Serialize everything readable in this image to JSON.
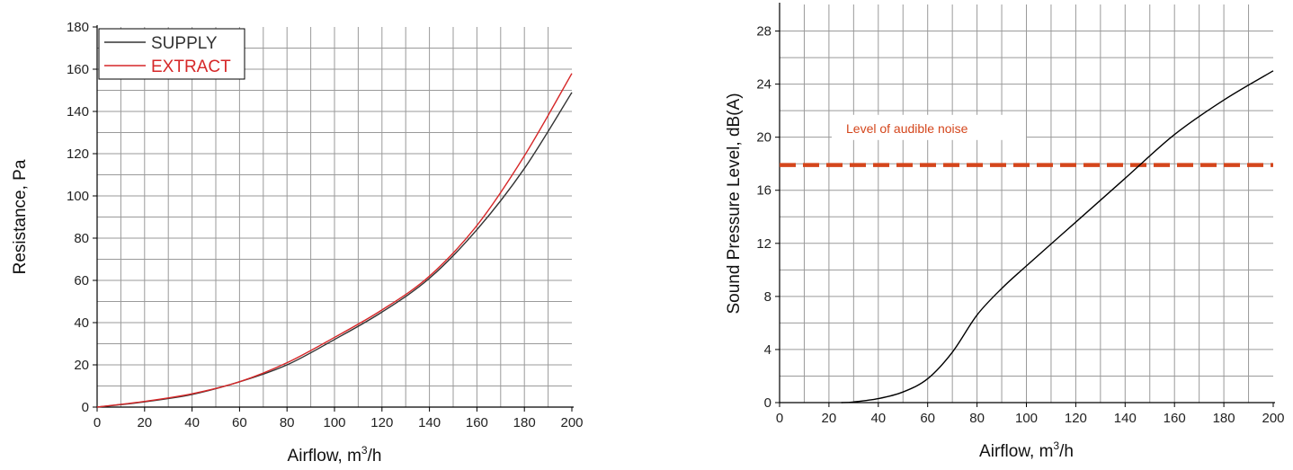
{
  "chart_data": [
    {
      "type": "line",
      "title": "",
      "xlabel": "Airflow, m",
      "xlabel_sup": "3",
      "xlabel_suffix": "/h",
      "ylabel": "Resistance, Pa",
      "xlim": [
        0,
        200
      ],
      "ylim": [
        0,
        180
      ],
      "xticks": [
        0,
        20,
        40,
        60,
        80,
        100,
        120,
        140,
        160,
        180,
        200
      ],
      "yticks": [
        0,
        20,
        40,
        60,
        80,
        100,
        120,
        140,
        160,
        180
      ],
      "grid": true,
      "legend_position": "top-left",
      "series": [
        {
          "name": "SUPPLY",
          "color": "#333333",
          "x": [
            0,
            20,
            40,
            60,
            80,
            100,
            120,
            140,
            160,
            180,
            200
          ],
          "y": [
            0,
            2.5,
            6,
            12,
            20,
            32,
            45,
            61,
            84,
            113,
            149
          ]
        },
        {
          "name": "EXTRACT",
          "color": "#d62728",
          "x": [
            0,
            20,
            40,
            60,
            80,
            100,
            120,
            140,
            160,
            180,
            200
          ],
          "y": [
            0,
            2.7,
            6.3,
            12,
            21,
            33,
            46,
            62,
            86,
            119,
            158
          ]
        }
      ]
    },
    {
      "type": "line",
      "title": "",
      "xlabel": "Airflow, m",
      "xlabel_sup": "3",
      "xlabel_suffix": "/h",
      "ylabel": "Sound Pressure Level, dB(A)",
      "xlim": [
        0,
        200
      ],
      "ylim": [
        0,
        30
      ],
      "xticks": [
        0,
        20,
        40,
        60,
        80,
        100,
        120,
        140,
        160,
        180,
        200
      ],
      "yticks": [
        0,
        4,
        8,
        12,
        16,
        20,
        24,
        28
      ],
      "grid": true,
      "series": [
        {
          "color": "#000000",
          "x": [
            25,
            30,
            40,
            50,
            60,
            70,
            80,
            90,
            100,
            120,
            140,
            160,
            180,
            200
          ],
          "y": [
            0,
            0.05,
            0.3,
            0.8,
            1.8,
            3.8,
            6.6,
            8.6,
            10.3,
            13.6,
            16.9,
            20.2,
            22.8,
            25
          ]
        }
      ],
      "reference_line": {
        "label": "Level of audible noise",
        "y": 17.9,
        "color": "#d4461c",
        "style": "dashed"
      }
    }
  ]
}
